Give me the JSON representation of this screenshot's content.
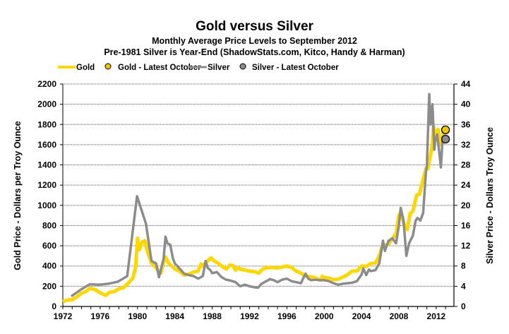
{
  "chart_data": {
    "type": "line",
    "title": "Gold versus Silver",
    "subtitle_1": "Monthly Average Price Levels to September 2012",
    "subtitle_2": "Pre-1981 Silver is Year-End (ShadowStats.com, Kitco, Handy & Harman)",
    "xlabel": "",
    "ylabel_left": "Gold Price - Dollars per Troy Ounce",
    "ylabel_right": "Silver Price - Dollars Troy Ounce",
    "xlim": [
      1972,
      2013.9
    ],
    "ylim_left": [
      0,
      2200
    ],
    "ylim_right": [
      0,
      44
    ],
    "x_ticks": [
      "1972",
      "1976",
      "1980",
      "1984",
      "1988",
      "1992",
      "1996",
      "2000",
      "2004",
      "2008",
      "2012"
    ],
    "y_ticks_left": [
      "0",
      "200",
      "400",
      "600",
      "800",
      "1000",
      "1200",
      "1400",
      "1600",
      "1800",
      "2000",
      "2200"
    ],
    "y_ticks_right": [
      "0",
      "4",
      "8",
      "12",
      "16",
      "20",
      "24",
      "28",
      "32",
      "36",
      "40",
      "44"
    ],
    "grid": true,
    "legend": {
      "placement": "top",
      "entries": [
        "Gold",
        "Gold - Latest October",
        "Silver",
        "Silver - Latest October"
      ]
    },
    "colors": {
      "gold": "#FFD700",
      "silver": "#8C8C8C",
      "gold_marker": "#F5C400",
      "silver_marker": "#8C8C8C"
    },
    "series": [
      {
        "name": "Gold",
        "axis": "left",
        "points": [
          [
            1972.0,
            48
          ],
          [
            1972.5,
            65
          ],
          [
            1973.0,
            65
          ],
          [
            1973.5,
            95
          ],
          [
            1974.0,
            130
          ],
          [
            1974.5,
            150
          ],
          [
            1974.9,
            180
          ],
          [
            1975.5,
            165
          ],
          [
            1976.0,
            135
          ],
          [
            1976.6,
            110
          ],
          [
            1977.0,
            140
          ],
          [
            1977.5,
            145
          ],
          [
            1978.0,
            175
          ],
          [
            1978.5,
            185
          ],
          [
            1979.0,
            230
          ],
          [
            1979.5,
            280
          ],
          [
            1979.8,
            390
          ],
          [
            1980.0,
            675
          ],
          [
            1980.2,
            560
          ],
          [
            1980.5,
            640
          ],
          [
            1980.8,
            650
          ],
          [
            1981.0,
            560
          ],
          [
            1981.5,
            430
          ],
          [
            1982.0,
            380
          ],
          [
            1982.5,
            330
          ],
          [
            1982.8,
            440
          ],
          [
            1983.0,
            490
          ],
          [
            1983.3,
            430
          ],
          [
            1983.8,
            390
          ],
          [
            1984.0,
            370
          ],
          [
            1984.5,
            350
          ],
          [
            1985.0,
            310
          ],
          [
            1985.5,
            320
          ],
          [
            1986.0,
            340
          ],
          [
            1986.5,
            350
          ],
          [
            1986.8,
            420
          ],
          [
            1987.0,
            400
          ],
          [
            1987.5,
            450
          ],
          [
            1987.9,
            480
          ],
          [
            1988.2,
            450
          ],
          [
            1988.6,
            430
          ],
          [
            1989.0,
            400
          ],
          [
            1989.5,
            370
          ],
          [
            1989.9,
            410
          ],
          [
            1990.2,
            405
          ],
          [
            1990.5,
            360
          ],
          [
            1990.8,
            385
          ],
          [
            1991.0,
            370
          ],
          [
            1991.5,
            360
          ],
          [
            1992.0,
            350
          ],
          [
            1992.5,
            345
          ],
          [
            1992.8,
            335
          ],
          [
            1993.0,
            330
          ],
          [
            1993.4,
            370
          ],
          [
            1993.8,
            380
          ],
          [
            1994.0,
            385
          ],
          [
            1994.5,
            385
          ],
          [
            1995.0,
            380
          ],
          [
            1995.5,
            390
          ],
          [
            1996.0,
            400
          ],
          [
            1996.5,
            385
          ],
          [
            1997.0,
            350
          ],
          [
            1997.5,
            330
          ],
          [
            1998.0,
            300
          ],
          [
            1998.5,
            295
          ],
          [
            1999.0,
            285
          ],
          [
            1999.6,
            260
          ],
          [
            1999.8,
            300
          ],
          [
            2000.0,
            285
          ],
          [
            2000.5,
            280
          ],
          [
            2001.0,
            265
          ],
          [
            2001.5,
            270
          ],
          [
            2002.0,
            290
          ],
          [
            2002.5,
            315
          ],
          [
            2003.0,
            350
          ],
          [
            2003.5,
            350
          ],
          [
            2004.0,
            400
          ],
          [
            2004.5,
            395
          ],
          [
            2005.0,
            425
          ],
          [
            2005.5,
            430
          ],
          [
            2005.9,
            500
          ],
          [
            2006.3,
            620
          ],
          [
            2006.5,
            600
          ],
          [
            2006.9,
            620
          ],
          [
            2007.3,
            670
          ],
          [
            2007.7,
            720
          ],
          [
            2008.0,
            900
          ],
          [
            2008.2,
            930
          ],
          [
            2008.6,
            800
          ],
          [
            2008.9,
            760
          ],
          [
            2009.2,
            920
          ],
          [
            2009.5,
            940
          ],
          [
            2009.9,
            1100
          ],
          [
            2010.2,
            1110
          ],
          [
            2010.5,
            1220
          ],
          [
            2010.9,
            1360
          ],
          [
            2011.1,
            1360
          ],
          [
            2011.4,
            1500
          ],
          [
            2011.6,
            1620
          ],
          [
            2011.7,
            1780
          ],
          [
            2011.9,
            1700
          ],
          [
            2012.0,
            1650
          ],
          [
            2012.2,
            1750
          ],
          [
            2012.5,
            1600
          ],
          [
            2012.7,
            1620
          ],
          [
            2012.75,
            1740
          ]
        ]
      },
      {
        "name": "Silver",
        "axis": "right",
        "points": [
          [
            1972.9,
            2.0
          ],
          [
            1973.9,
            3.3
          ],
          [
            1974.9,
            4.4
          ],
          [
            1975.9,
            4.3
          ],
          [
            1976.9,
            4.5
          ],
          [
            1977.9,
            4.9
          ],
          [
            1978.9,
            6.0
          ],
          [
            1979.95,
            21.8
          ],
          [
            1980.9,
            16.4
          ],
          [
            1981.5,
            9.0
          ],
          [
            1982.0,
            8.5
          ],
          [
            1982.3,
            5.8
          ],
          [
            1982.8,
            9.5
          ],
          [
            1983.0,
            13.8
          ],
          [
            1983.2,
            12.5
          ],
          [
            1983.5,
            12.2
          ],
          [
            1983.8,
            9.5
          ],
          [
            1984.0,
            8.5
          ],
          [
            1984.5,
            7.5
          ],
          [
            1985.0,
            6.5
          ],
          [
            1985.5,
            6.2
          ],
          [
            1986.0,
            6.0
          ],
          [
            1986.5,
            5.5
          ],
          [
            1986.8,
            5.8
          ],
          [
            1987.0,
            6.0
          ],
          [
            1987.3,
            9.0
          ],
          [
            1987.5,
            7.7
          ],
          [
            1987.8,
            7.2
          ],
          [
            1988.0,
            6.6
          ],
          [
            1988.5,
            6.8
          ],
          [
            1989.0,
            5.8
          ],
          [
            1989.5,
            5.3
          ],
          [
            1990.0,
            5.1
          ],
          [
            1990.5,
            4.8
          ],
          [
            1991.0,
            4.0
          ],
          [
            1991.5,
            4.3
          ],
          [
            1992.0,
            4.0
          ],
          [
            1992.5,
            3.8
          ],
          [
            1992.9,
            3.7
          ],
          [
            1993.3,
            4.5
          ],
          [
            1993.8,
            5.0
          ],
          [
            1994.2,
            5.4
          ],
          [
            1994.6,
            5.2
          ],
          [
            1995.0,
            4.8
          ],
          [
            1995.5,
            5.3
          ],
          [
            1996.0,
            5.5
          ],
          [
            1996.5,
            5.0
          ],
          [
            1997.0,
            4.8
          ],
          [
            1997.5,
            4.6
          ],
          [
            1998.0,
            6.5
          ],
          [
            1998.3,
            5.5
          ],
          [
            1998.6,
            5.2
          ],
          [
            1999.0,
            5.3
          ],
          [
            1999.5,
            5.2
          ],
          [
            2000.0,
            5.2
          ],
          [
            2000.5,
            5.0
          ],
          [
            2001.0,
            4.6
          ],
          [
            2001.5,
            4.3
          ],
          [
            2002.0,
            4.5
          ],
          [
            2002.5,
            4.6
          ],
          [
            2003.0,
            4.7
          ],
          [
            2003.5,
            5.0
          ],
          [
            2004.0,
            6.3
          ],
          [
            2004.2,
            7.5
          ],
          [
            2004.5,
            6.2
          ],
          [
            2004.8,
            7.3
          ],
          [
            2005.0,
            7.0
          ],
          [
            2005.5,
            7.2
          ],
          [
            2005.9,
            8.5
          ],
          [
            2006.3,
            13.0
          ],
          [
            2006.5,
            11.0
          ],
          [
            2006.9,
            13.0
          ],
          [
            2007.3,
            13.5
          ],
          [
            2007.7,
            12.5
          ],
          [
            2008.0,
            16.0
          ],
          [
            2008.2,
            19.5
          ],
          [
            2008.5,
            17.0
          ],
          [
            2008.8,
            10.0
          ],
          [
            2009.1,
            12.5
          ],
          [
            2009.5,
            14.0
          ],
          [
            2009.8,
            17.0
          ],
          [
            2010.0,
            17.5
          ],
          [
            2010.3,
            17.0
          ],
          [
            2010.6,
            18.5
          ],
          [
            2010.9,
            26.5
          ],
          [
            2011.0,
            28.0
          ],
          [
            2011.25,
            42.0
          ],
          [
            2011.4,
            36.0
          ],
          [
            2011.6,
            40.0
          ],
          [
            2011.8,
            31.0
          ],
          [
            2011.9,
            33.0
          ],
          [
            2012.1,
            34.0
          ],
          [
            2012.3,
            31.0
          ],
          [
            2012.5,
            27.5
          ],
          [
            2012.7,
            33.5
          ]
        ]
      }
    ],
    "markers": [
      {
        "name": "Gold - Latest October",
        "axis": "left",
        "x": 2013.0,
        "y": 1747
      },
      {
        "name": "Silver - Latest October",
        "axis": "right",
        "x": 2013.0,
        "y": 33.1
      }
    ]
  }
}
